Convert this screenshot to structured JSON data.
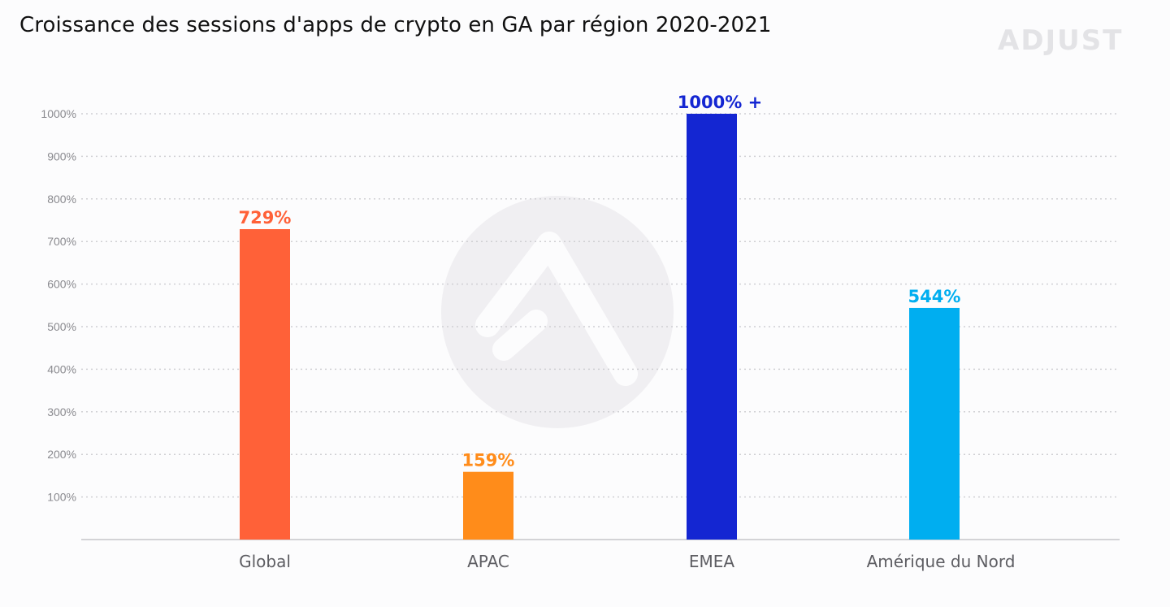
{
  "title": "Croissance des sessions d'apps de crypto en GA par région 2020-2021",
  "brand": "ADJUST",
  "chart_data": {
    "type": "bar",
    "title": "Croissance des sessions d'apps de crypto en GA par région 2020-2021",
    "xlabel": "",
    "ylabel": "",
    "ylim": [
      0,
      1000
    ],
    "yticks": [
      100,
      200,
      300,
      400,
      500,
      600,
      700,
      800,
      900,
      1000
    ],
    "ytick_labels": [
      "100%",
      "200%",
      "300%",
      "400%",
      "500%",
      "600%",
      "700%",
      "800%",
      "900%",
      "1000%"
    ],
    "categories": [
      "Global",
      "APAC",
      "EMEA",
      "Amérique du Nord"
    ],
    "values": [
      729,
      159,
      1000,
      544
    ],
    "value_labels": [
      "729%",
      "159%",
      "1000% +",
      "544%"
    ],
    "colors": [
      "#ff6138",
      "#ff8c1a",
      "#1426d2",
      "#00aef0"
    ],
    "grid": true,
    "grid_style": "dotted",
    "legend": "none"
  }
}
